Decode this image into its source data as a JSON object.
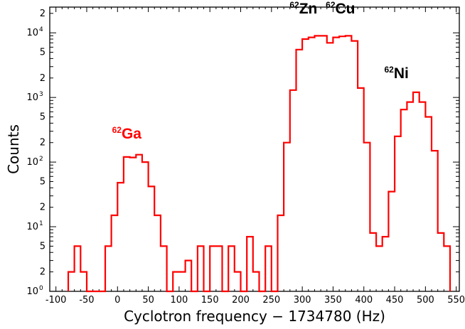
{
  "chart_data": {
    "type": "line",
    "step": true,
    "title": "",
    "xlabel": "Cyclotron frequency − 1734780 (Hz)",
    "ylabel": "Counts",
    "xlim": [
      -110,
      555
    ],
    "ylim": [
      1,
      25000
    ],
    "yscale": "log",
    "grid": false,
    "line_color": "#ff0000",
    "x_ticks": [
      -100,
      -50,
      0,
      50,
      100,
      150,
      200,
      250,
      300,
      350,
      400,
      450,
      500,
      550
    ],
    "x_tick_labels": [
      "-100",
      "-50",
      "0",
      "50",
      "100",
      "150",
      "200",
      "250",
      "300",
      "350",
      "400",
      "450",
      "500",
      "550"
    ],
    "y_decades": [
      {
        "value": 1,
        "base": "10",
        "exp": "0"
      },
      {
        "value": 10,
        "base": "10",
        "exp": "1"
      },
      {
        "value": 100,
        "base": "10",
        "exp": "2"
      },
      {
        "value": 1000,
        "base": "10",
        "exp": "3"
      },
      {
        "value": 10000,
        "base": "10",
        "exp": "4"
      }
    ],
    "y_minor_labeled": [
      {
        "value": 2,
        "label": "2"
      },
      {
        "value": 5,
        "label": "5"
      },
      {
        "value": 20,
        "label": "2"
      },
      {
        "value": 50,
        "label": "5"
      },
      {
        "value": 200,
        "label": "2"
      },
      {
        "value": 500,
        "label": "5"
      },
      {
        "value": 2000,
        "label": "2"
      },
      {
        "value": 5000,
        "label": "5"
      },
      {
        "value": 20000,
        "label": "2"
      }
    ],
    "bin_width": 10,
    "bin_start": -80,
    "series": [
      {
        "values": [
          2,
          5,
          2,
          1,
          1,
          1,
          5,
          15,
          48,
          120,
          118,
          130,
          100,
          42,
          15,
          5,
          1,
          2,
          2,
          3,
          1,
          5,
          1,
          5,
          5,
          1,
          5,
          2,
          1,
          7,
          2,
          1,
          5,
          1,
          15,
          200,
          1300,
          5500,
          8000,
          8500,
          9000,
          9000,
          7000,
          8500,
          8800,
          9000,
          7500,
          1400,
          200,
          8,
          5,
          7,
          35,
          250,
          650,
          850,
          1200,
          850,
          500,
          150,
          8,
          5
        ]
      }
    ],
    "annotations": [
      {
        "mass": "62",
        "element": "Ga",
        "color": "#ff0000",
        "x": 15,
        "y": 230
      },
      {
        "mass": "62",
        "element": "Zn",
        "color": "#000000",
        "x": 302,
        "y": 20000
      },
      {
        "mass": "62",
        "element": "Cu",
        "color": "#000000",
        "x": 362,
        "y": 20000
      },
      {
        "mass": "62",
        "element": "Ni",
        "color": "#000000",
        "x": 453,
        "y": 2000
      }
    ]
  }
}
